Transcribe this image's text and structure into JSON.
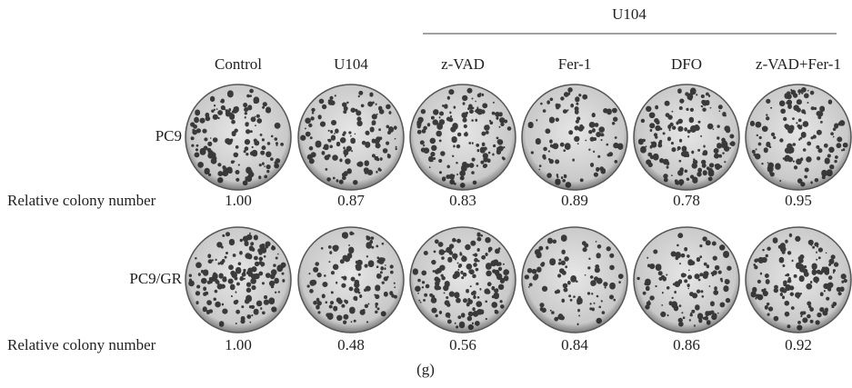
{
  "group_label": "U104",
  "columns": [
    "Control",
    "U104",
    "z-VAD",
    "Fer-1",
    "DFO",
    "z-VAD+Fer-1"
  ],
  "rows": [
    {
      "label": "PC9",
      "metric_label": "Relative colony number",
      "values": [
        "1.00",
        "0.87",
        "0.83",
        "0.89",
        "0.78",
        "0.95"
      ]
    },
    {
      "label": "PC9/GR",
      "metric_label": "Relative colony number",
      "values": [
        "1.00",
        "0.48",
        "0.56",
        "0.84",
        "0.86",
        "0.92"
      ]
    }
  ],
  "caption": "(g)"
}
